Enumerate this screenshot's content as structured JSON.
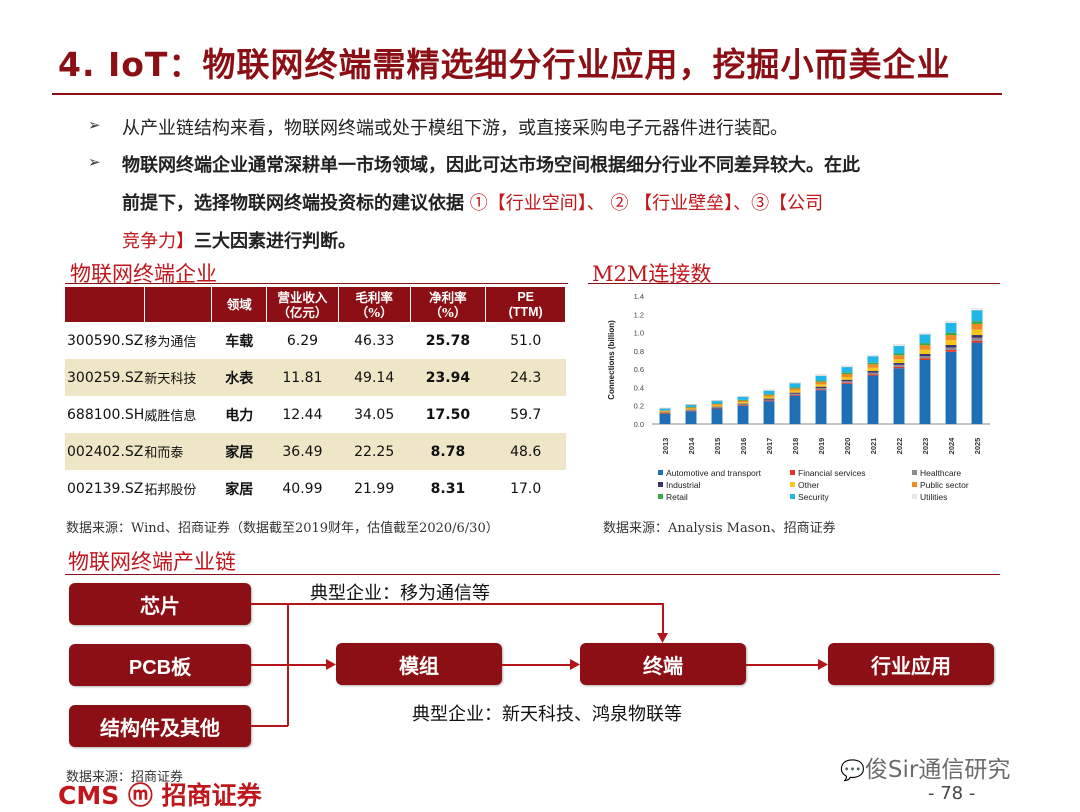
{
  "title": "4. IoT：物联网终端需精选细分行业应用，挖掘小而美企业",
  "bullets": {
    "b1": "从产业链结构来看，物联网终端或处于模组下游，或直接采购电子元器件进行装配。",
    "b2_line1": "物联网终端企业通常深耕单一市场领域，因此可达市场空间根据细分行业不同差异较大。在此",
    "b2_line2_prefix": "前提下，选择物联网终端投资标的建议依据",
    "b2_line2_red": " ①【行业空间】、 ② 【行业壁垒】、③【公司",
    "b2_line3_red": "竞争力】",
    "b2_line3_suffix": "三大因素进行判断。"
  },
  "table_section": {
    "title": "物联网终端企业",
    "headers": [
      "",
      "",
      "领域",
      "营业收入\n（亿元）",
      "毛利率\n（%）",
      "净利率\n（%）",
      "PE\n(TTM)"
    ],
    "rows": [
      {
        "code": "300590.SZ",
        "name": "移为通信",
        "field": "车载",
        "revenue": "6.29",
        "gross": "46.33",
        "net": "25.78",
        "pe": "51.0"
      },
      {
        "code": "300259.SZ",
        "name": "新天科技",
        "field": "水表",
        "revenue": "11.81",
        "gross": "49.14",
        "net": "23.94",
        "pe": "24.3"
      },
      {
        "code": "688100.SH",
        "name": "威胜信息",
        "field": "电力",
        "revenue": "12.44",
        "gross": "34.05",
        "net": "17.50",
        "pe": "59.7"
      },
      {
        "code": "002402.SZ",
        "name": "和而泰",
        "field": "家居",
        "revenue": "36.49",
        "gross": "22.25",
        "net": "8.78",
        "pe": "48.6"
      },
      {
        "code": "002139.SZ",
        "name": "拓邦股份",
        "field": "家居",
        "revenue": "40.99",
        "gross": "21.99",
        "net": "8.31",
        "pe": "17.0"
      }
    ],
    "source": "数据来源：Wind、招商证券（数据截至2019财年，估值截至2020/6/30）"
  },
  "chart_section": {
    "title": "M2M连接数",
    "source": "数据来源：Analysis Mason、招商证券"
  },
  "chart_data": {
    "type": "bar",
    "stacked": true,
    "ylabel": "Connections (billion)",
    "ylim": [
      0,
      1.4
    ],
    "yticks": [
      "0.0",
      "0.2",
      "0.4",
      "0.6",
      "0.8",
      "1.0",
      "1.2",
      "1.4"
    ],
    "categories": [
      "2013",
      "2014",
      "2015",
      "2016",
      "2017",
      "2018",
      "2019",
      "2020",
      "2021",
      "2022",
      "2023",
      "2024",
      "2025"
    ],
    "series": [
      {
        "name": "Automotive and transport",
        "color": "#1f6fb5",
        "values": [
          0.11,
          0.14,
          0.17,
          0.2,
          0.25,
          0.31,
          0.37,
          0.44,
          0.53,
          0.61,
          0.7,
          0.79,
          0.89
        ]
      },
      {
        "name": "Financial services",
        "color": "#e8302a",
        "values": [
          0.005,
          0.005,
          0.006,
          0.007,
          0.008,
          0.009,
          0.01,
          0.012,
          0.013,
          0.015,
          0.017,
          0.019,
          0.021
        ]
      },
      {
        "name": "Healthcare",
        "color": "#8c8c8c",
        "values": [
          0.005,
          0.006,
          0.007,
          0.008,
          0.01,
          0.012,
          0.014,
          0.016,
          0.019,
          0.022,
          0.025,
          0.028,
          0.032
        ]
      },
      {
        "name": "Industrial",
        "color": "#3b3270",
        "values": [
          0.005,
          0.006,
          0.007,
          0.008,
          0.01,
          0.012,
          0.014,
          0.016,
          0.018,
          0.021,
          0.024,
          0.027,
          0.03
        ]
      },
      {
        "name": "Other",
        "color": "#f5c518",
        "values": [
          0.01,
          0.012,
          0.014,
          0.016,
          0.019,
          0.022,
          0.026,
          0.03,
          0.035,
          0.04,
          0.046,
          0.052,
          0.058
        ]
      },
      {
        "name": "Public sector",
        "color": "#f08a24",
        "values": [
          0.01,
          0.012,
          0.014,
          0.017,
          0.02,
          0.024,
          0.028,
          0.033,
          0.038,
          0.044,
          0.05,
          0.057,
          0.064
        ]
      },
      {
        "name": "Retail",
        "color": "#3aa845",
        "values": [
          0.005,
          0.006,
          0.007,
          0.008,
          0.009,
          0.011,
          0.013,
          0.015,
          0.017,
          0.02,
          0.023,
          0.026,
          0.029
        ]
      },
      {
        "name": "Security",
        "color": "#1fb6e8",
        "values": [
          0.02,
          0.024,
          0.028,
          0.033,
          0.039,
          0.046,
          0.054,
          0.062,
          0.072,
          0.083,
          0.095,
          0.108,
          0.122
        ]
      },
      {
        "name": "Utilities",
        "color": "#ffffff",
        "values": [
          0.005,
          0.005,
          0.006,
          0.007,
          0.008,
          0.009,
          0.01,
          0.011,
          0.012,
          0.014,
          0.015,
          0.017,
          0.019
        ]
      }
    ]
  },
  "chain_section": {
    "title": "物联网终端产业链",
    "boxes": {
      "chip": "芯片",
      "pcb": "PCB板",
      "struct": "结构件及其他",
      "module": "模组",
      "terminal": "终端",
      "app": "行业应用"
    },
    "typical_top": "典型企业：移为通信等",
    "typical_bottom": "典型企业：新天科技、鸿泉物联等",
    "source": "数据来源：招商证券"
  },
  "footer": {
    "logo": "CMS ⓜ 招商证券",
    "wechat": "俊Sir通信研究",
    "page": "- 78 -"
  }
}
